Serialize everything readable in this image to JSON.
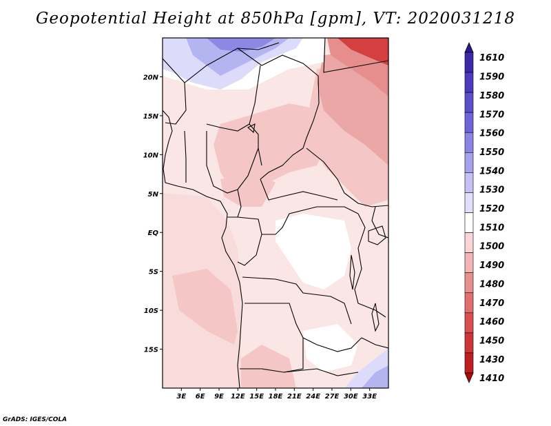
{
  "title": "Geopotential Height at 850hPa [gpm], VT: 2020031218",
  "credit": "GrADS: IGES/COLA",
  "map": {
    "lon_range": [
      0,
      36
    ],
    "lat_range": [
      -20,
      25
    ],
    "x_ticks": [
      "3E",
      "6E",
      "9E",
      "12E",
      "15E",
      "18E",
      "21E",
      "24E",
      "27E",
      "30E",
      "33E"
    ],
    "y_ticks": [
      "20N",
      "15N",
      "10N",
      "5N",
      "EQ",
      "5S",
      "10S",
      "15S"
    ]
  },
  "colorbar": {
    "levels": [
      "1610",
      "1590",
      "1580",
      "1570",
      "1560",
      "1550",
      "1540",
      "1530",
      "1520",
      "1510",
      "1500",
      "1490",
      "1480",
      "1470",
      "1460",
      "1450",
      "1430",
      "1410"
    ],
    "colors": [
      "#2a1a8c",
      "#3a2aa8",
      "#4a3cbc",
      "#5a50cc",
      "#6e66d8",
      "#8a84e2",
      "#a6a2ec",
      "#c4c2f4",
      "#e0e0fa",
      "#ffffff",
      "#fad6d6",
      "#f2b4b4",
      "#e89090",
      "#e07070",
      "#d85050",
      "#cc3838",
      "#bc2020",
      "#a80c0c"
    ]
  },
  "field_colors": {
    "ocean": "#f8dcdc",
    "land_light": "#fbe6e6",
    "land_mid": "#f4c6c6",
    "land_dark": "#eba6a6",
    "ne_red": "#e68e8e",
    "ne_deep": "#d44040",
    "blue_light": "#dcdcfa",
    "blue_mid": "#b4b4f0",
    "blue_deep": "#8c88e4",
    "white": "#ffffff"
  }
}
